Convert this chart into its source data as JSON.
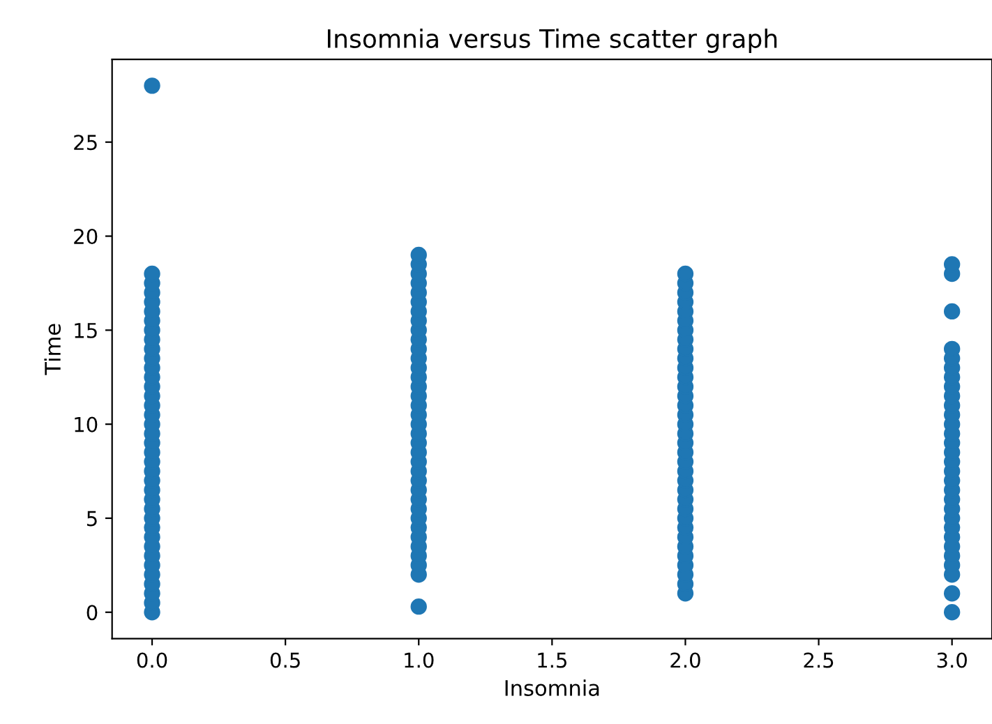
{
  "chart_data": {
    "type": "scatter",
    "title": "Insomnia versus Time scatter graph",
    "xlabel": "Insomnia",
    "ylabel": "Time",
    "xlim": [
      -0.15,
      3.15
    ],
    "xticks": [
      {
        "value": 0,
        "label": "0.0"
      },
      {
        "value": 0.5,
        "label": "0.5"
      },
      {
        "value": 1,
        "label": "1.0"
      },
      {
        "value": 1.5,
        "label": "1.5"
      },
      {
        "value": 2,
        "label": "2.0"
      },
      {
        "value": 2.5,
        "label": "2.5"
      },
      {
        "value": 3,
        "label": "3.0"
      }
    ],
    "ylim": [
      -1.4,
      29.4
    ],
    "yticks": [
      0,
      5,
      10,
      15,
      20,
      25
    ],
    "grid": false,
    "marker": "circle",
    "series": [
      {
        "color": "#1f77b4",
        "x": [
          0,
          0,
          0,
          0,
          0,
          0,
          0,
          0,
          0,
          0,
          0,
          0,
          0,
          0,
          0,
          0,
          0,
          0,
          0,
          0,
          0,
          0,
          0,
          0,
          0,
          0,
          0,
          0,
          0,
          0,
          0,
          0,
          0,
          0,
          0,
          0,
          0,
          0,
          1,
          1,
          1,
          1,
          1,
          1,
          1,
          1,
          1,
          1,
          1,
          1,
          1,
          1,
          1,
          1,
          1,
          1,
          1,
          1,
          1,
          1,
          1,
          1,
          1,
          1,
          1,
          1,
          1,
          1,
          1,
          1,
          1,
          1,
          1,
          1,
          2,
          2,
          2,
          2,
          2,
          2,
          2,
          2,
          2,
          2,
          2,
          2,
          2,
          2,
          2,
          2,
          2,
          2,
          2,
          2,
          2,
          2,
          2,
          2,
          2,
          2,
          2,
          2,
          2,
          2,
          2,
          2,
          2,
          2,
          2,
          3,
          3,
          3,
          3,
          3,
          3,
          3,
          3,
          3,
          3,
          3,
          3,
          3,
          3,
          3,
          3,
          3,
          3,
          3,
          3,
          3,
          3,
          3,
          3,
          3,
          3,
          3,
          3,
          3,
          3
        ],
        "values": [
          0,
          0.5,
          1,
          1.5,
          2,
          2.5,
          3,
          3.5,
          4,
          4.5,
          5,
          5.5,
          6,
          6.5,
          7,
          7.5,
          8,
          8.5,
          9,
          9.5,
          10,
          10.5,
          11,
          11.5,
          12,
          12.5,
          13,
          13.5,
          14,
          14.5,
          15,
          15.5,
          16,
          16.5,
          17,
          17.5,
          18,
          28,
          0.3,
          2,
          2.5,
          3,
          3.5,
          4,
          4.5,
          5,
          5.5,
          6,
          6.5,
          7,
          7.5,
          8,
          8.5,
          9,
          9.5,
          10,
          10.5,
          11,
          11.5,
          12,
          12.5,
          13,
          13.5,
          14,
          14.5,
          15,
          15.5,
          16,
          16.5,
          17,
          17.5,
          18,
          18.5,
          19,
          1,
          1.5,
          2,
          2.5,
          3,
          3.5,
          4,
          4.5,
          5,
          5.5,
          6,
          6.5,
          7,
          7.5,
          8,
          8.5,
          9,
          9.5,
          10,
          10.5,
          11,
          11.5,
          12,
          12.5,
          13,
          13.5,
          14,
          14.5,
          15,
          15.5,
          16,
          16.5,
          17,
          17.5,
          18,
          0,
          1,
          2,
          2.5,
          3,
          3.5,
          4,
          4.5,
          5,
          5.5,
          6,
          6.5,
          7,
          7.5,
          8,
          8.5,
          9,
          9.5,
          10,
          10.5,
          11,
          11.5,
          12,
          12.5,
          13,
          13.5,
          14,
          16,
          18,
          18.5
        ]
      }
    ]
  }
}
